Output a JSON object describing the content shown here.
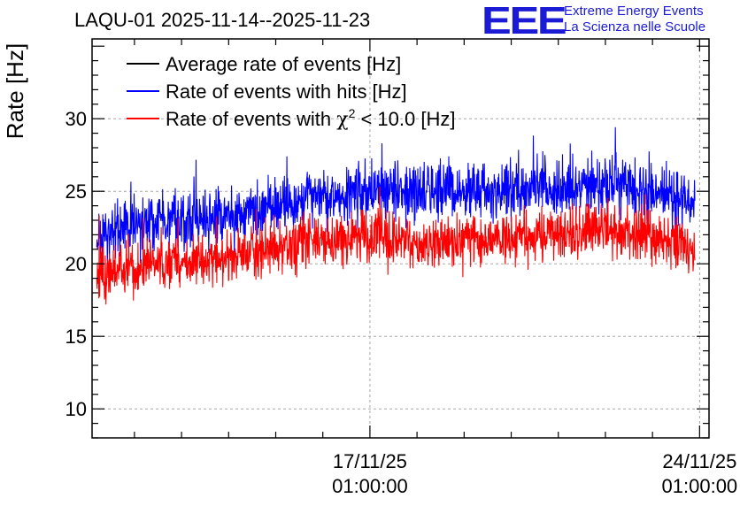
{
  "header": {
    "title": "LAQU-01 2025-11-14--2025-11-23",
    "logo": "EEE",
    "org_line1": "Extreme Energy Events",
    "org_line2": "La Scienza nelle Scuole"
  },
  "chart_data": {
    "type": "line",
    "ylabel": "Rate [Hz]",
    "xlabel": "",
    "ylim": [
      8,
      35.5
    ],
    "y_ticks": [
      10,
      15,
      20,
      25,
      30
    ],
    "x_range_days": [
      -5.9,
      7.2
    ],
    "x_ticks": [
      {
        "day": 0,
        "line1": "17/11/25",
        "line2": "01:00:00"
      },
      {
        "day": 7,
        "line1": "24/11/25",
        "line2": "01:00:00"
      }
    ],
    "grid": true,
    "legend_position": "top-left",
    "data_start_day": -5.8,
    "data_end_day": 6.9,
    "series": [
      {
        "name": "Average rate of events [Hz]",
        "color": "#000000",
        "noise": 0,
        "x": [],
        "y": []
      },
      {
        "name": "Rate of events with hits [Hz]",
        "color": "#0000ff",
        "noise": 1.2,
        "x": [
          -5.8,
          -4.8,
          -3.5,
          -2.0,
          -0.5,
          0.2,
          1.5,
          3.0,
          4.0,
          5.0,
          6.0,
          6.9
        ],
        "y": [
          22.0,
          22.8,
          23.3,
          24.0,
          24.8,
          25.2,
          24.9,
          25.0,
          25.3,
          25.6,
          25.0,
          24.2
        ]
      },
      {
        "name": "Rate of events with χ² < 10.0 [Hz]",
        "legend_parts": [
          "Rate of events with ",
          "χ",
          "2",
          " < 10.0 [Hz]"
        ],
        "color": "#ff0000",
        "noise": 1.1,
        "x": [
          -5.8,
          -4.8,
          -3.5,
          -2.0,
          -0.5,
          0.2,
          1.5,
          3.0,
          4.0,
          5.0,
          6.0,
          6.9
        ],
        "y": [
          19.2,
          19.7,
          20.3,
          21.1,
          21.9,
          21.8,
          21.4,
          21.7,
          22.0,
          22.4,
          21.9,
          21.2
        ]
      }
    ]
  }
}
